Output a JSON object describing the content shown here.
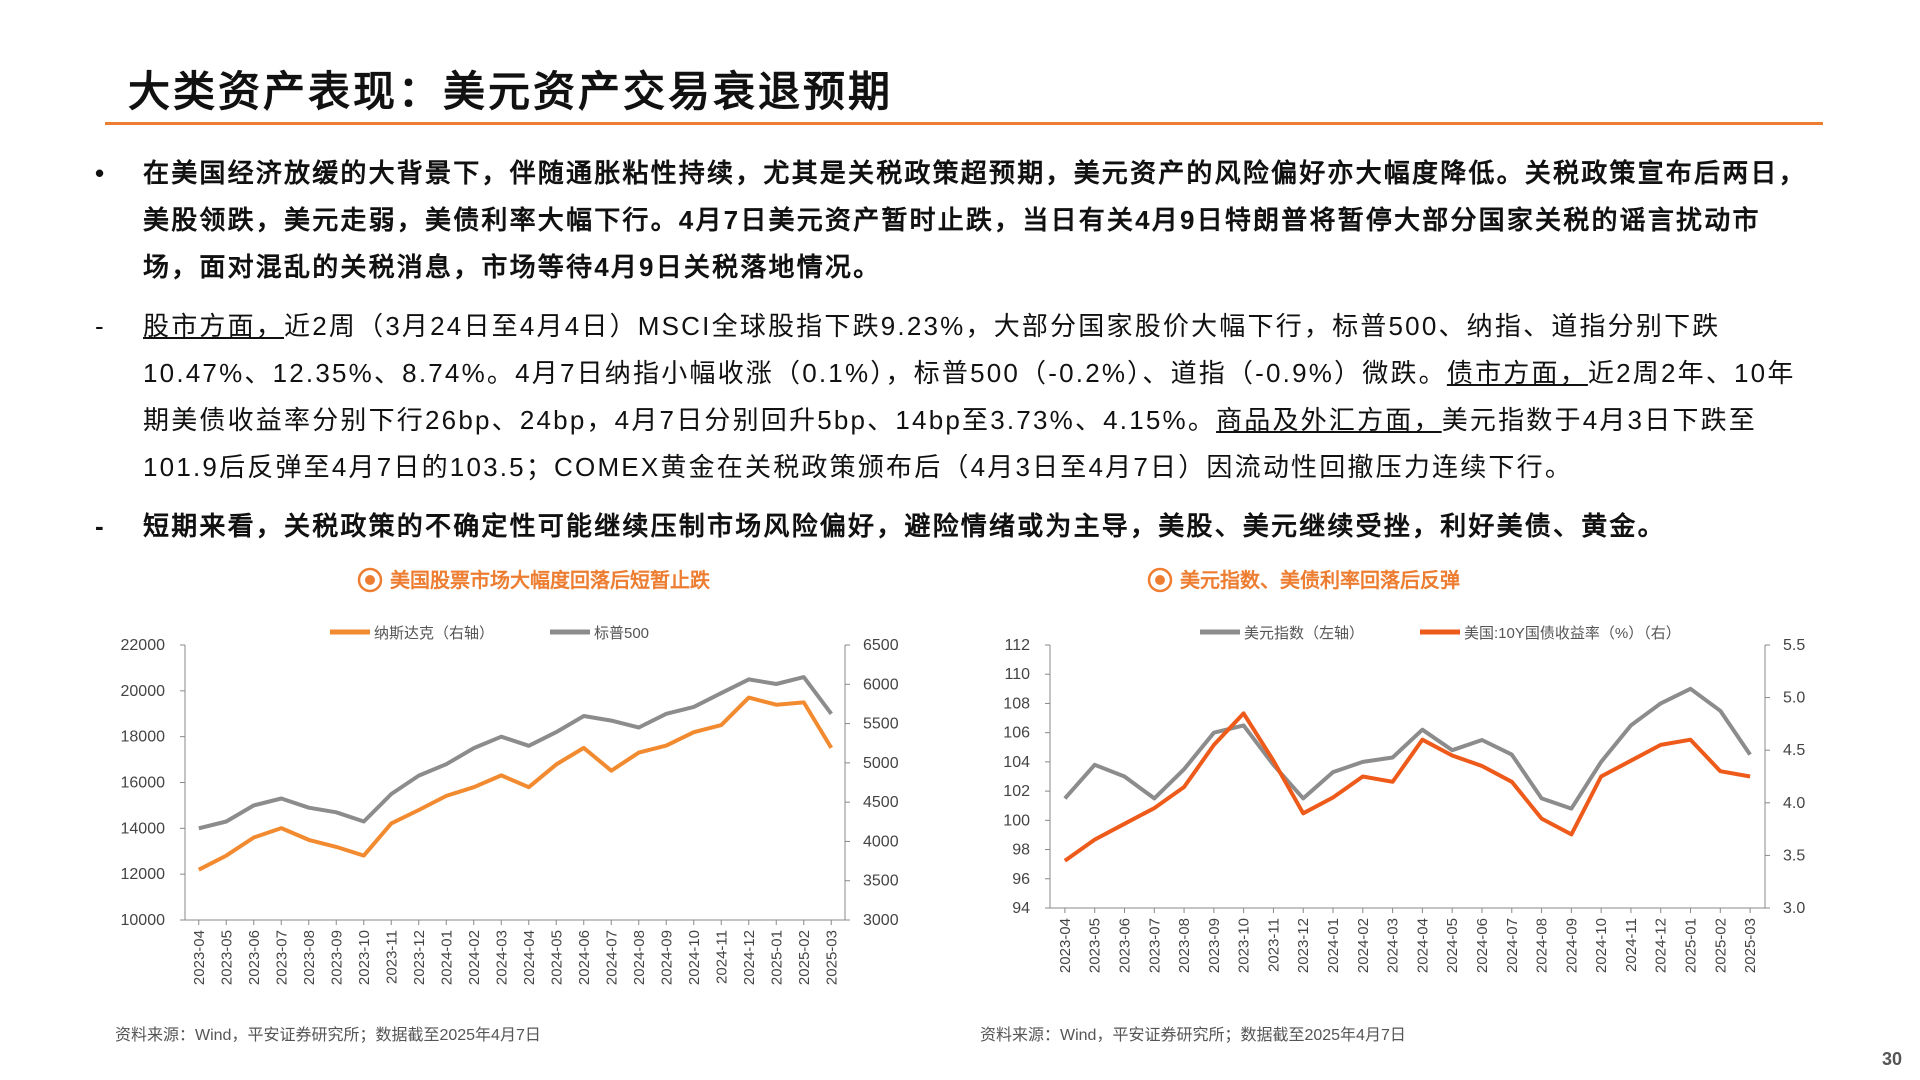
{
  "title": "大类资产表现：美元资产交易衰退预期",
  "paragraphs": [
    {
      "marker": "•",
      "bold": true,
      "segments": [
        {
          "text": "在美国经济放缓的大背景下，伴随通胀粘性持续，尤其是关税政策超预期，美元资产的风险偏好亦大幅度降低。关税政策宣布后两日，美股领跌，美元走弱，美债利率大幅下行。4月7日美元资产暂时止跌，当日有关4月9日特朗普将暂停大部分国家关税的谣言扰动市场，面对混乱的关税消息，市场等待4月9日关税落地情况。",
          "underline": false
        }
      ]
    },
    {
      "marker": "-",
      "bold": false,
      "segments": [
        {
          "text": "股市方面，",
          "underline": true
        },
        {
          "text": "近2周（3月24日至4月4日）MSCI全球股指下跌9.23%，大部分国家股价大幅下行，标普500、纳指、道指分别下跌10.47%、12.35%、8.74%。4月7日纳指小幅收涨（0.1%），标普500（-0.2%）、道指（-0.9%）微跌。",
          "underline": false
        },
        {
          "text": "债市方面，",
          "underline": true
        },
        {
          "text": "近2周2年、10年期美债收益率分别下行26bp、24bp，4月7日分别回升5bp、14bp至3.73%、4.15%。",
          "underline": false
        },
        {
          "text": "商品及外汇方面，",
          "underline": true
        },
        {
          "text": "美元指数于4月3日下跌至101.9后反弹至4月7日的103.5；COMEX黄金在关税政策颁布后（4月3日至4月7日）因流动性回撤压力连续下行。",
          "underline": false
        }
      ]
    },
    {
      "marker": "-",
      "bold": true,
      "segments": [
        {
          "text": "短期来看，关税政策的不确定性可能继续压制市场风险偏好，避险情绪或为主导，美股、美元继续受挫，利好美债、黄金。",
          "underline": false
        }
      ]
    }
  ],
  "chart_data": [
    {
      "type": "line",
      "title": "美国股票市场大幅度回落后短暂止跌",
      "source": "资料来源：Wind，平安证券研究所；数据截至2025年4月7日",
      "x": [
        "2023-04",
        "2023-05",
        "2023-06",
        "2023-07",
        "2023-08",
        "2023-09",
        "2023-10",
        "2023-11",
        "2023-12",
        "2024-01",
        "2024-02",
        "2024-03",
        "2024-04",
        "2024-05",
        "2024-06",
        "2024-07",
        "2024-08",
        "2024-09",
        "2024-10",
        "2024-11",
        "2024-12",
        "2025-01",
        "2025-02",
        "2025-03"
      ],
      "series": [
        {
          "name": "纳斯达克（右轴）",
          "color": "#f28a30",
          "axis": "y2",
          "values": [
            3640,
            3820,
            4050,
            4170,
            4020,
            3930,
            3820,
            4230,
            4400,
            4580,
            4690,
            4840,
            4690,
            4980,
            5190,
            4900,
            5130,
            5220,
            5390,
            5480,
            5830,
            5740,
            5770,
            5190
          ]
        },
        {
          "name": "标普500",
          "color": "#8c8c8c",
          "values": [
            14000,
            14300,
            15000,
            15300,
            14900,
            14700,
            14300,
            15500,
            16300,
            16800,
            17500,
            18000,
            17600,
            18200,
            18900,
            18700,
            18400,
            19000,
            19300,
            19900,
            20500,
            20300,
            20600,
            19000
          ]
        }
      ],
      "ylim": [
        10000,
        22000
      ],
      "yticks": [
        10000,
        12000,
        14000,
        16000,
        18000,
        20000,
        22000
      ],
      "y2lim": [
        3000,
        6500
      ],
      "y2ticks": [
        3000,
        3500,
        4000,
        4500,
        5000,
        5500,
        6000,
        6500
      ]
    },
    {
      "type": "line",
      "title": "美元指数、美债利率回落后反弹",
      "source": "资料来源：Wind，平安证券研究所；数据截至2025年4月7日",
      "x": [
        "2023-04",
        "2023-05",
        "2023-06",
        "2023-07",
        "2023-08",
        "2023-09",
        "2023-10",
        "2023-11",
        "2023-12",
        "2024-01",
        "2024-02",
        "2024-03",
        "2024-04",
        "2024-05",
        "2024-06",
        "2024-07",
        "2024-08",
        "2024-09",
        "2024-10",
        "2024-11",
        "2024-12",
        "2025-01",
        "2025-02",
        "2025-03"
      ],
      "series": [
        {
          "name": "美元指数（左轴）",
          "color": "#8c8c8c",
          "values": [
            101.5,
            103.8,
            103,
            101.5,
            103.5,
            106,
            106.5,
            103.8,
            101.5,
            103.3,
            104,
            104.3,
            106.2,
            104.8,
            105.5,
            104.5,
            101.5,
            100.8,
            104,
            106.5,
            108,
            109,
            107.5,
            104.5
          ]
        },
        {
          "name": "美国:10Y国债收益率（%）（右）",
          "color": "#ee5a1a",
          "axis": "y2",
          "values": [
            3.45,
            3.65,
            3.8,
            3.95,
            4.15,
            4.55,
            4.85,
            4.4,
            3.9,
            4.05,
            4.25,
            4.2,
            4.6,
            4.45,
            4.35,
            4.2,
            3.85,
            3.7,
            4.25,
            4.4,
            4.55,
            4.6,
            4.3,
            4.25
          ]
        }
      ],
      "ylim": [
        94,
        112
      ],
      "yticks": [
        94,
        96,
        98,
        100,
        102,
        104,
        106,
        108,
        110,
        112
      ],
      "y2lim": [
        3.0,
        5.5
      ],
      "y2ticks": [
        {
          "value": 3.0,
          "label": "3.0"
        },
        {
          "value": 3.5,
          "label": "3.5"
        },
        {
          "value": 4.0,
          "label": "4.0"
        },
        {
          "value": 4.5,
          "label": "4.5"
        },
        {
          "value": 5.0,
          "label": "5.0"
        },
        {
          "value": 5.5,
          "label": "5.5"
        }
      ]
    }
  ],
  "page_number": "30"
}
